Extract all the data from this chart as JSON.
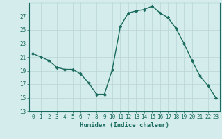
{
  "x": [
    0,
    1,
    2,
    3,
    4,
    5,
    6,
    7,
    8,
    9,
    10,
    11,
    12,
    13,
    14,
    15,
    16,
    17,
    18,
    19,
    20,
    21,
    22,
    23
  ],
  "y": [
    21.5,
    21.0,
    20.5,
    19.5,
    19.2,
    19.2,
    18.5,
    17.2,
    15.5,
    15.5,
    19.2,
    25.5,
    27.5,
    27.8,
    28.0,
    28.5,
    27.5,
    26.8,
    25.2,
    23.0,
    20.5,
    18.2,
    16.8,
    15.0
  ],
  "line_color": "#1a6b5e",
  "marker": "D",
  "marker_size": 2.2,
  "bg_color": "#d4ecec",
  "grid_color": "#b8d4d4",
  "xlabel": "Humidex (Indice chaleur)",
  "xlim": [
    -0.5,
    23.5
  ],
  "ylim": [
    13,
    29
  ],
  "yticks": [
    13,
    15,
    17,
    19,
    21,
    23,
    25,
    27
  ],
  "xticks": [
    0,
    1,
    2,
    3,
    4,
    5,
    6,
    7,
    8,
    9,
    10,
    11,
    12,
    13,
    14,
    15,
    16,
    17,
    18,
    19,
    20,
    21,
    22,
    23
  ],
  "tick_label_size": 5.5,
  "xlabel_size": 6.5,
  "line_width": 1.0
}
